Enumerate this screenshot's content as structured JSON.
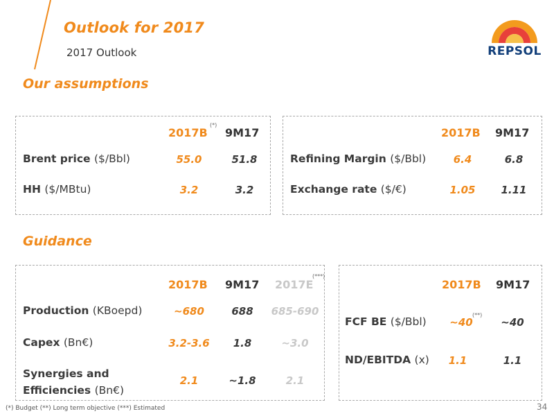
{
  "header": {
    "title": "Outlook for 2017",
    "subtitle": "2017 Outlook",
    "logo_text": "REPSOL"
  },
  "colors": {
    "accent": "#f08a1c",
    "muted": "#c8c8c8",
    "text": "#3a3a3a",
    "logo_blue": "#123f7a",
    "logo_red": "#d8282d"
  },
  "assumptions": {
    "heading": "Our assumptions",
    "left": {
      "headers": [
        "2017B",
        "9M17"
      ],
      "header_note": "(*)",
      "rows": [
        {
          "label": "Brent price",
          "unit": "($/Bbl)",
          "values": [
            "55.0",
            "51.8"
          ]
        },
        {
          "label": "HH",
          "unit": "($/MBtu)",
          "values": [
            "3.2",
            "3.2"
          ]
        }
      ]
    },
    "right": {
      "headers": [
        "2017B",
        "9M17"
      ],
      "rows": [
        {
          "label": "Refining Margin",
          "unit": "($/Bbl)",
          "values": [
            "6.4",
            "6.8"
          ]
        },
        {
          "label": "Exchange rate",
          "unit": "($/€)",
          "values": [
            "1.05",
            "1.11"
          ]
        }
      ]
    }
  },
  "guidance": {
    "heading": "Guidance",
    "left": {
      "headers": [
        "2017B",
        "9M17",
        "2017E"
      ],
      "header_note": "(***)",
      "rows": [
        {
          "label": "Production",
          "unit": "(KBoepd)",
          "values": [
            "~680",
            "688",
            "685-690"
          ]
        },
        {
          "label": "Capex",
          "unit": "(Bn€)",
          "values": [
            "3.2-3.6",
            "1.8",
            "~3.0"
          ]
        },
        {
          "label_line1": "Synergies and",
          "label_line2": "Efficiencies",
          "unit": "(Bn€)",
          "values": [
            "2.1",
            "~1.8",
            "2.1"
          ]
        }
      ]
    },
    "right": {
      "headers": [
        "2017B",
        "9M17"
      ],
      "rows": [
        {
          "label": "FCF BE",
          "unit": "($/Bbl)",
          "values": [
            "~40",
            "~40"
          ],
          "note": "(**)"
        },
        {
          "label": "ND/EBITDA",
          "unit": "(x)",
          "values": [
            "1.1",
            "1.1"
          ]
        }
      ]
    }
  },
  "footer": {
    "footnote": "(*) Budget   (**) Long term objective (***) Estimated",
    "page_number": "34"
  }
}
